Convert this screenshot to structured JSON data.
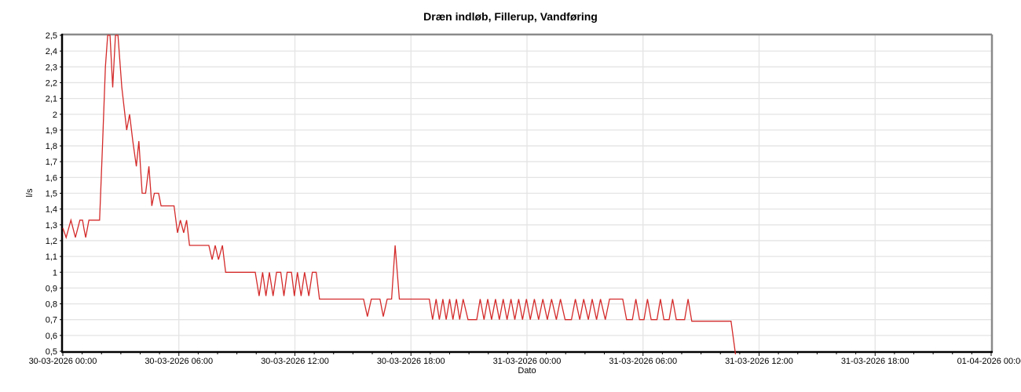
{
  "title": "Dræn indløb, Fillerup, Vandføring",
  "chart_data": {
    "type": "line",
    "title": "Dræn indløb, Fillerup, Vandføring",
    "xlabel": "Dato",
    "ylabel": "l/s",
    "legend": [],
    "grid": "on",
    "line_color": "#d42a2a",
    "grid_color": "#e4e4e4",
    "border_gray": "#8a8a8a",
    "axis_black": "#000000",
    "xlim_hours": [
      0,
      48
    ],
    "ylim": [
      0.5,
      2.5
    ],
    "x_origin_label": "30-03-2026 00:00",
    "x_tick_hours": [
      0,
      6,
      12,
      18,
      24,
      30,
      36,
      42,
      48
    ],
    "x_tick_labels": [
      "30-03-2026 00:00",
      "30-03-2026 06:00",
      "30-03-2026 12:00",
      "30-03-2026 18:00",
      "31-03-2026 00:00",
      "31-03-2026 06:00",
      "31-03-2026 12:00",
      "31-03-2026 18:00",
      "01-04-2026 00:00"
    ],
    "y_tick_values": [
      2.5,
      2.4,
      2.3,
      2.2,
      2.1,
      2.0,
      1.9,
      1.8,
      1.7,
      1.6,
      1.5,
      1.4,
      1.3,
      1.2,
      1.1,
      1.0,
      0.9,
      0.8,
      0.7,
      0.6,
      0.5
    ],
    "y_tick_labels": [
      "2,5",
      "2,4",
      "2,3",
      "2,2",
      "2,1",
      "2",
      "1,9",
      "1,8",
      "1,7",
      "1,6",
      "1,5",
      "1,4",
      "1,3",
      "1,2",
      "1,1",
      "1",
      "0,9",
      "0,8",
      "0,7",
      "0,6",
      "0,5"
    ],
    "series": [
      {
        "name": "Vandføring",
        "unit": "l/s",
        "x_unit": "hours since 30-03-2026 00:00",
        "points": [
          [
            0.0,
            1.28
          ],
          [
            0.17,
            1.22
          ],
          [
            0.42,
            1.33
          ],
          [
            0.65,
            1.22
          ],
          [
            0.88,
            1.33
          ],
          [
            1.02,
            1.33
          ],
          [
            1.1,
            1.27
          ],
          [
            1.18,
            1.22
          ],
          [
            1.35,
            1.33
          ],
          [
            1.9,
            1.33
          ],
          [
            2.05,
            1.8
          ],
          [
            2.2,
            2.3
          ],
          [
            2.32,
            2.5
          ],
          [
            2.44,
            2.5
          ],
          [
            2.58,
            2.17
          ],
          [
            2.72,
            2.5
          ],
          [
            2.85,
            2.5
          ],
          [
            3.05,
            2.17
          ],
          [
            3.3,
            1.9
          ],
          [
            3.45,
            2.0
          ],
          [
            3.62,
            1.83
          ],
          [
            3.8,
            1.67
          ],
          [
            3.93,
            1.83
          ],
          [
            4.1,
            1.5
          ],
          [
            4.28,
            1.5
          ],
          [
            4.45,
            1.67
          ],
          [
            4.6,
            1.42
          ],
          [
            4.73,
            1.5
          ],
          [
            4.95,
            1.5
          ],
          [
            5.08,
            1.42
          ],
          [
            5.75,
            1.42
          ],
          [
            5.93,
            1.25
          ],
          [
            6.08,
            1.33
          ],
          [
            6.25,
            1.25
          ],
          [
            6.4,
            1.33
          ],
          [
            6.55,
            1.17
          ],
          [
            7.55,
            1.17
          ],
          [
            7.72,
            1.08
          ],
          [
            7.88,
            1.17
          ],
          [
            8.05,
            1.08
          ],
          [
            8.25,
            1.17
          ],
          [
            8.42,
            1.0
          ],
          [
            9.95,
            1.0
          ],
          [
            10.15,
            0.85
          ],
          [
            10.33,
            1.0
          ],
          [
            10.5,
            0.85
          ],
          [
            10.68,
            1.0
          ],
          [
            10.87,
            0.85
          ],
          [
            11.05,
            1.0
          ],
          [
            11.27,
            1.0
          ],
          [
            11.43,
            0.85
          ],
          [
            11.6,
            1.0
          ],
          [
            11.82,
            1.0
          ],
          [
            11.97,
            0.85
          ],
          [
            12.13,
            1.0
          ],
          [
            12.32,
            0.85
          ],
          [
            12.5,
            1.0
          ],
          [
            12.72,
            0.85
          ],
          [
            12.9,
            1.0
          ],
          [
            13.1,
            1.0
          ],
          [
            13.27,
            0.83
          ],
          [
            15.55,
            0.83
          ],
          [
            15.75,
            0.72
          ],
          [
            15.95,
            0.83
          ],
          [
            16.4,
            0.83
          ],
          [
            16.57,
            0.72
          ],
          [
            16.77,
            0.83
          ],
          [
            17.0,
            0.83
          ],
          [
            17.18,
            1.17
          ],
          [
            17.4,
            0.83
          ],
          [
            18.95,
            0.83
          ],
          [
            19.12,
            0.7
          ],
          [
            19.3,
            0.83
          ],
          [
            19.47,
            0.7
          ],
          [
            19.65,
            0.83
          ],
          [
            19.82,
            0.7
          ],
          [
            20.0,
            0.83
          ],
          [
            20.17,
            0.7
          ],
          [
            20.35,
            0.83
          ],
          [
            20.52,
            0.7
          ],
          [
            20.7,
            0.83
          ],
          [
            20.95,
            0.7
          ],
          [
            21.4,
            0.7
          ],
          [
            21.58,
            0.83
          ],
          [
            21.78,
            0.7
          ],
          [
            21.97,
            0.83
          ],
          [
            22.17,
            0.7
          ],
          [
            22.37,
            0.83
          ],
          [
            22.57,
            0.7
          ],
          [
            22.77,
            0.83
          ],
          [
            22.97,
            0.7
          ],
          [
            23.17,
            0.83
          ],
          [
            23.37,
            0.7
          ],
          [
            23.57,
            0.83
          ],
          [
            23.77,
            0.7
          ],
          [
            23.97,
            0.83
          ],
          [
            24.17,
            0.7
          ],
          [
            24.38,
            0.83
          ],
          [
            24.6,
            0.7
          ],
          [
            24.82,
            0.83
          ],
          [
            25.05,
            0.7
          ],
          [
            25.27,
            0.83
          ],
          [
            25.52,
            0.7
          ],
          [
            25.73,
            0.83
          ],
          [
            25.97,
            0.7
          ],
          [
            26.3,
            0.7
          ],
          [
            26.5,
            0.83
          ],
          [
            26.73,
            0.7
          ],
          [
            26.93,
            0.83
          ],
          [
            27.17,
            0.7
          ],
          [
            27.37,
            0.83
          ],
          [
            27.6,
            0.7
          ],
          [
            27.8,
            0.83
          ],
          [
            28.05,
            0.7
          ],
          [
            28.27,
            0.83
          ],
          [
            28.95,
            0.83
          ],
          [
            29.15,
            0.7
          ],
          [
            29.45,
            0.7
          ],
          [
            29.63,
            0.83
          ],
          [
            29.82,
            0.7
          ],
          [
            30.05,
            0.7
          ],
          [
            30.23,
            0.83
          ],
          [
            30.42,
            0.7
          ],
          [
            30.72,
            0.7
          ],
          [
            30.9,
            0.83
          ],
          [
            31.08,
            0.7
          ],
          [
            31.35,
            0.7
          ],
          [
            31.53,
            0.83
          ],
          [
            31.72,
            0.7
          ],
          [
            32.15,
            0.7
          ],
          [
            32.33,
            0.83
          ],
          [
            32.52,
            0.69
          ],
          [
            34.55,
            0.69
          ],
          [
            34.78,
            0.48
          ]
        ]
      }
    ]
  }
}
